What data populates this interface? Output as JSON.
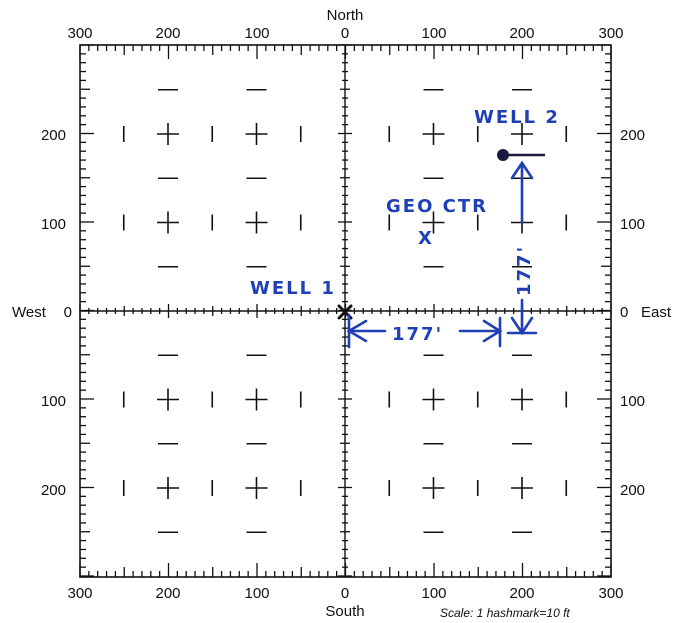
{
  "compass": {
    "north": "North",
    "south": "South",
    "west": "West",
    "east": "East"
  },
  "top_ticks": [
    "300",
    "200",
    "100",
    "0",
    "100",
    "200",
    "300"
  ],
  "bottom_ticks": [
    "300",
    "200",
    "100",
    "0",
    "100",
    "200",
    "300"
  ],
  "left_ticks": [
    "200",
    "100",
    "0",
    "100",
    "200"
  ],
  "right_ticks": [
    "200",
    "100",
    "0",
    "100",
    "200"
  ],
  "annotations": {
    "well1": "WELL 1",
    "well2": "WELL 2",
    "geo_center": "GEO CTR",
    "geo_center_mark": "X",
    "east_offset": "177'",
    "north_offset": "177'"
  },
  "scale_note": "Scale:  1 hashmark=10 ft",
  "colors": {
    "ink": "#1f3fb5",
    "grid": "#111111"
  }
}
